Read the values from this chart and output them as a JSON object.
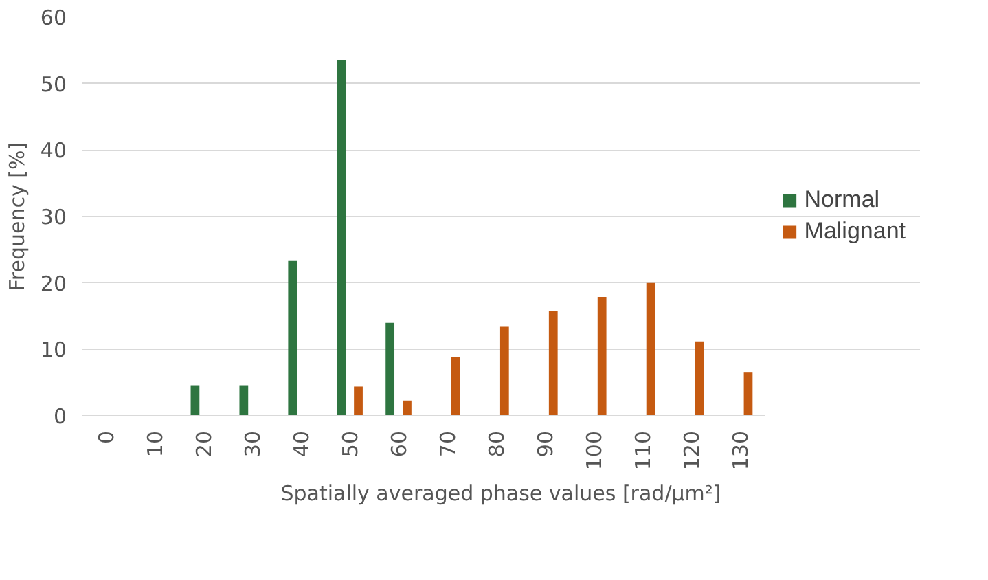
{
  "chart_data": {
    "type": "bar",
    "xlabel": "Spatially averaged phase values [rad/µm²]",
    "ylabel": "Frequency [%]",
    "categories": [
      "0",
      "10",
      "20",
      "30",
      "40",
      "50",
      "60",
      "70",
      "80",
      "90",
      "100",
      "110",
      "120",
      "130"
    ],
    "series": [
      {
        "name": "Normal",
        "color": "#2e7540",
        "values": [
          0,
          0,
          4.6,
          4.6,
          23.3,
          53.5,
          14,
          0,
          0,
          0,
          0,
          0,
          0,
          0
        ]
      },
      {
        "name": "Malignant",
        "color": "#c55a11",
        "values": [
          0,
          0,
          0,
          0,
          0,
          4.4,
          2.3,
          8.8,
          13.4,
          15.8,
          17.9,
          20,
          11.2,
          6.5
        ]
      }
    ],
    "ylim": [
      0,
      60
    ],
    "yticks": [
      0,
      10,
      20,
      30,
      40,
      50,
      60
    ],
    "grid": "y",
    "legend": "right"
  }
}
